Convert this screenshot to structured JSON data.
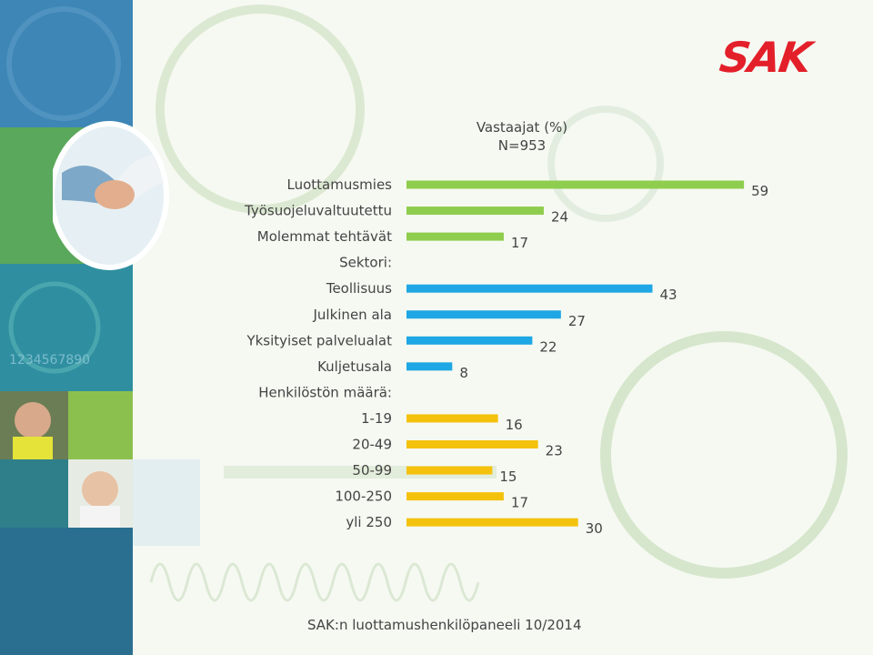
{
  "brand": {
    "logo_text": "SAK",
    "logo_color": "#e3202a"
  },
  "chart_header": {
    "line1": "Vastaajat (%)",
    "line2": "N=953"
  },
  "footer": {
    "source": "SAK:n luottamushenkilöpaneeli 10/2014"
  },
  "colors": {
    "green": "#8fcd4e",
    "blue": "#1ea7e4",
    "yellow": "#f4c20d",
    "text": "#444444"
  },
  "chart_data": {
    "type": "bar",
    "orientation": "horizontal",
    "title": "Vastaajat (%)",
    "subtitle": "N=953",
    "xlim": [
      0,
      60
    ],
    "grid": false,
    "rows": [
      {
        "label": "Luottamusmies",
        "value": 59,
        "color": "green"
      },
      {
        "label": "Työsuojeluvaltuutettu",
        "value": 24,
        "color": "green"
      },
      {
        "label": "Molemmat tehtävät",
        "value": 17,
        "color": "green"
      },
      {
        "label": "Sektori:",
        "value": null
      },
      {
        "label": "Teollisuus",
        "value": 43,
        "color": "blue"
      },
      {
        "label": "Julkinen ala",
        "value": 27,
        "color": "blue"
      },
      {
        "label": "Yksityiset palvelualat",
        "value": 22,
        "color": "blue"
      },
      {
        "label": "Kuljetusala",
        "value": 8,
        "color": "blue"
      },
      {
        "label": "Henkilöstön määrä:",
        "value": null
      },
      {
        "label": "1-19",
        "value": 16,
        "color": "yellow"
      },
      {
        "label": "20-49",
        "value": 23,
        "color": "yellow"
      },
      {
        "label": "50-99",
        "value": 15,
        "color": "yellow"
      },
      {
        "label": "100-250",
        "value": 17,
        "color": "yellow"
      },
      {
        "label": "yli 250",
        "value": 30,
        "color": "yellow"
      }
    ]
  }
}
